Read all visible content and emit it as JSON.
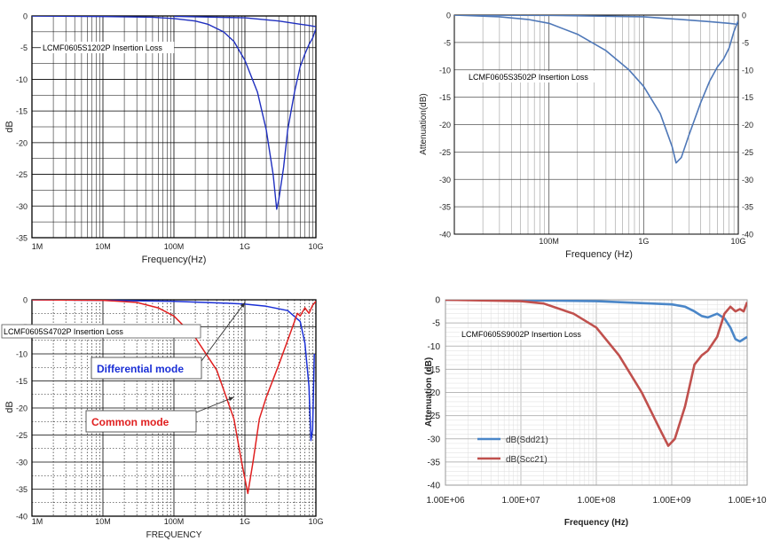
{
  "chart_data": [
    {
      "type": "line",
      "title": "LCMF0605S1202P Insertion Loss",
      "xlabel": "Frequency(Hz)",
      "ylabel": "dB",
      "x_scale": "log",
      "xlim": [
        1000000,
        10000000000
      ],
      "ylim": [
        -35,
        0
      ],
      "x_ticks": [
        1000000,
        10000000,
        100000000,
        1000000000,
        10000000000
      ],
      "x_tick_labels": [
        "1M",
        "10M",
        "100M",
        "1G",
        "10G"
      ],
      "y_ticks": [
        0,
        -5,
        -10,
        -15,
        -20,
        -25,
        -30,
        -35
      ],
      "y_tick_labels": [
        "0",
        "-5",
        "-10",
        "-15",
        "-20",
        "-25",
        "-30",
        "-35"
      ],
      "grid": true,
      "series": [
        {
          "color": "#1f2fbf",
          "x": [
            1000000,
            10000000,
            50000000,
            100000000,
            200000000,
            300000000,
            500000000,
            700000000,
            1000000000,
            1500000000,
            2000000000,
            2500000000,
            2800000000,
            3000000000,
            3500000000,
            4000000000,
            5000000000,
            6000000000,
            7000000000,
            8000000000,
            9000000000,
            10000000000
          ],
          "y": [
            0,
            -0.1,
            -0.2,
            -0.4,
            -0.8,
            -1.3,
            -2.5,
            -4,
            -7,
            -12,
            -18,
            -25,
            -30.5,
            -29,
            -24,
            -18,
            -12,
            -8,
            -6,
            -4.5,
            -3.5,
            -2
          ]
        },
        {
          "color": "#1f2fbf",
          "x": [
            100000000,
            1000000000,
            3000000000,
            6000000000,
            8000000000,
            10000000000
          ],
          "y": [
            -0.05,
            -0.3,
            -0.8,
            -1.3,
            -1.5,
            -1.7
          ]
        }
      ]
    },
    {
      "type": "line",
      "title": "LCMF0605S3502P Insertion Loss",
      "xlabel": "Frequency (Hz)",
      "ylabel": "Attenuation(dB)",
      "x_scale": "log",
      "xlim": [
        10000000,
        10000000000
      ],
      "ylim": [
        -40,
        0
      ],
      "x_ticks": [
        100000000,
        1000000000,
        10000000000
      ],
      "x_tick_labels": [
        "100M",
        "1G",
        "10G"
      ],
      "y_ticks": [
        0,
        -5,
        -10,
        -15,
        -20,
        -25,
        -30,
        -35,
        -40
      ],
      "y_tick_labels": [
        "0",
        "-5",
        "-10",
        "-15",
        "-20",
        "-25",
        "-30",
        "-35",
        "-40"
      ],
      "grid": true,
      "series": [
        {
          "color": "#4f78b8",
          "x": [
            10000000,
            30000000,
            60000000,
            100000000,
            200000000,
            400000000,
            700000000,
            1000000000,
            1500000000,
            2000000000,
            2200000000,
            2500000000,
            3000000000,
            4000000000,
            5000000000,
            6000000000,
            7000000000,
            8000000000,
            9000000000,
            10000000000
          ],
          "y": [
            0,
            -0.3,
            -0.8,
            -1.5,
            -3.5,
            -6.5,
            -10,
            -13,
            -18,
            -24,
            -27,
            -26,
            -22,
            -16,
            -12,
            -9.5,
            -8,
            -6,
            -3,
            -1
          ]
        },
        {
          "color": "#4f78b8",
          "x": [
            10000000,
            100000000,
            1000000000,
            5000000000,
            8000000000,
            10000000000
          ],
          "y": [
            0,
            -0.05,
            -0.3,
            -1.2,
            -1.5,
            -1.7
          ]
        }
      ]
    },
    {
      "type": "line",
      "title": "LCMF0605S4702P Insertion Loss",
      "xlabel": "FREQUENCY",
      "ylabel": "dB",
      "x_scale": "log",
      "xlim": [
        1000000,
        10000000000
      ],
      "ylim": [
        -40,
        0
      ],
      "x_ticks": [
        1000000,
        10000000,
        100000000,
        1000000000,
        10000000000
      ],
      "x_tick_labels": [
        "1M",
        "10M",
        "100M",
        "1G",
        "10G"
      ],
      "y_ticks": [
        0,
        -5,
        -10,
        -15,
        -20,
        -25,
        -30,
        -35,
        -40
      ],
      "y_tick_labels": [
        "0",
        "-5",
        "-10",
        "-15",
        "-20",
        "-25",
        "-30",
        "-35",
        "-40"
      ],
      "grid": true,
      "annotations": [
        "Differential mode",
        "Common mode"
      ],
      "series": [
        {
          "color": "#1a2fd6",
          "x": [
            1000000,
            10000000,
            100000000,
            500000000,
            1000000000,
            2000000000,
            4000000000,
            6000000000,
            7000000000,
            8000000000,
            8500000000,
            9000000000,
            9500000000
          ],
          "y": [
            0,
            -0.1,
            -0.3,
            -0.6,
            -0.8,
            -1.2,
            -2,
            -4,
            -8,
            -16,
            -26,
            -24,
            -10
          ]
        },
        {
          "color": "#e02020",
          "x": [
            1000000,
            10000000,
            30000000,
            60000000,
            100000000,
            200000000,
            400000000,
            700000000,
            900000000,
            1100000000,
            1300000000,
            1600000000,
            2000000000,
            3000000000,
            4000000000,
            5000000000,
            5500000000,
            6000000000,
            7000000000,
            8000000000,
            9000000000,
            10000000000
          ],
          "y": [
            0,
            -0.1,
            -0.5,
            -1.5,
            -3,
            -7,
            -13,
            -22,
            -30,
            -35.8,
            -30,
            -22,
            -18,
            -12,
            -7.5,
            -4,
            -2.5,
            -3,
            -1.5,
            -2.5,
            -1,
            -0.3
          ]
        }
      ]
    },
    {
      "type": "line",
      "title": "LCMF0605S9002P Insertion Loss",
      "xlabel": "Frequency (Hz)",
      "ylabel": "Attenuation (dB)",
      "x_scale": "log",
      "xlim": [
        1000000,
        10000000000
      ],
      "ylim": [
        -40,
        0
      ],
      "x_ticks": [
        1000000,
        10000000,
        100000000,
        1000000000,
        10000000000
      ],
      "x_tick_labels": [
        "1.00E+06",
        "1.00E+07",
        "1.00E+08",
        "1.00E+09",
        "1.00E+10"
      ],
      "y_ticks": [
        0,
        -5,
        -10,
        -15,
        -20,
        -25,
        -30,
        -35,
        -40
      ],
      "y_tick_labels": [
        "0",
        "-5",
        "-10",
        "-15",
        "-20",
        "-25",
        "-30",
        "-35",
        "-40"
      ],
      "grid": true,
      "legend_position": "bottom-left",
      "series": [
        {
          "name": "dB(Sdd21)",
          "color": "#4a86c8",
          "x": [
            1000000,
            10000000,
            100000000,
            1000000000,
            1500000000,
            2000000000,
            2500000000,
            3000000000,
            4000000000,
            5000000000,
            6000000000,
            7000000000,
            8000000000,
            10000000000
          ],
          "y": [
            0,
            -0.1,
            -0.3,
            -1,
            -1.5,
            -2.5,
            -3.5,
            -3.8,
            -3,
            -4,
            -6,
            -8.5,
            -9,
            -8
          ]
        },
        {
          "name": "dB(Scc21)",
          "color": "#c0504d",
          "x": [
            1000000,
            10000000,
            20000000,
            50000000,
            100000000,
            200000000,
            400000000,
            700000000,
            900000000,
            1100000000,
            1500000000,
            2000000000,
            2500000000,
            3000000000,
            4000000000,
            5000000000,
            6000000000,
            7000000000,
            8000000000,
            9000000000,
            10000000000
          ],
          "y": [
            0,
            -0.3,
            -0.8,
            -3,
            -6,
            -12,
            -20,
            -28,
            -31.5,
            -30,
            -23,
            -14,
            -12,
            -11,
            -8,
            -3,
            -1.5,
            -2.5,
            -2,
            -2.5,
            -0.5
          ]
        }
      ]
    }
  ]
}
